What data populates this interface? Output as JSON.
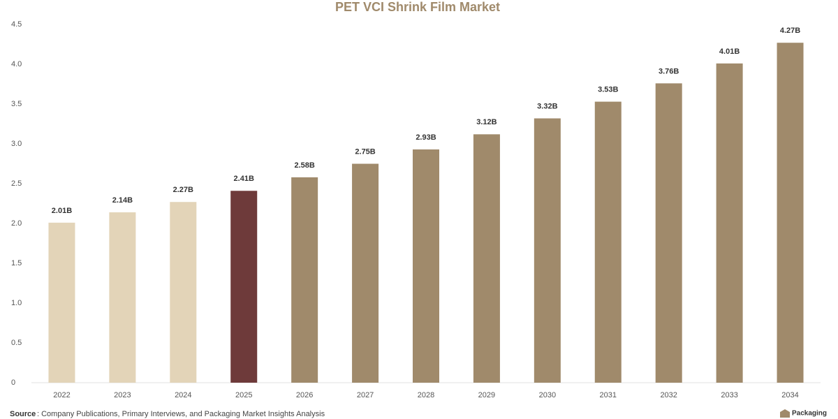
{
  "chart_data": {
    "type": "bar",
    "title": "PET VCI Shrink Film Market",
    "categories": [
      "2022",
      "2023",
      "2024",
      "2025",
      "2026",
      "2027",
      "2028",
      "2029",
      "2030",
      "2031",
      "2032",
      "2033",
      "2034"
    ],
    "values": [
      2.01,
      2.14,
      2.27,
      2.41,
      2.58,
      2.75,
      2.93,
      3.12,
      3.32,
      3.53,
      3.76,
      4.01,
      4.27
    ],
    "value_labels": [
      "2.01B",
      "2.14B",
      "2.27B",
      "2.41B",
      "2.58B",
      "2.75B",
      "2.93B",
      "3.12B",
      "3.32B",
      "3.53B",
      "3.76B",
      "4.01B",
      "4.27B"
    ],
    "colors": [
      "#e3d4b8",
      "#e3d4b8",
      "#e3d4b8",
      "#6e3a3a",
      "#a08a6b",
      "#a08a6b",
      "#a08a6b",
      "#a08a6b",
      "#a08a6b",
      "#a08a6b",
      "#a08a6b",
      "#a08a6b",
      "#a08a6b"
    ],
    "ylim": [
      0,
      4.5
    ],
    "yticks": [
      0,
      0.5,
      {
        "value": 1,
        "label": "1.0"
      },
      1.5,
      {
        "value": 2,
        "label": "2.0"
      },
      2.5,
      {
        "value": 3,
        "label": "3.0"
      },
      3.5,
      {
        "value": 4,
        "label": "4.0"
      },
      4.5
    ],
    "grid": false,
    "source_label": "Source",
    "source": ": Company Publications, Primary Interviews, and Packaging Market Insights Analysis",
    "logo": "Packaging"
  }
}
